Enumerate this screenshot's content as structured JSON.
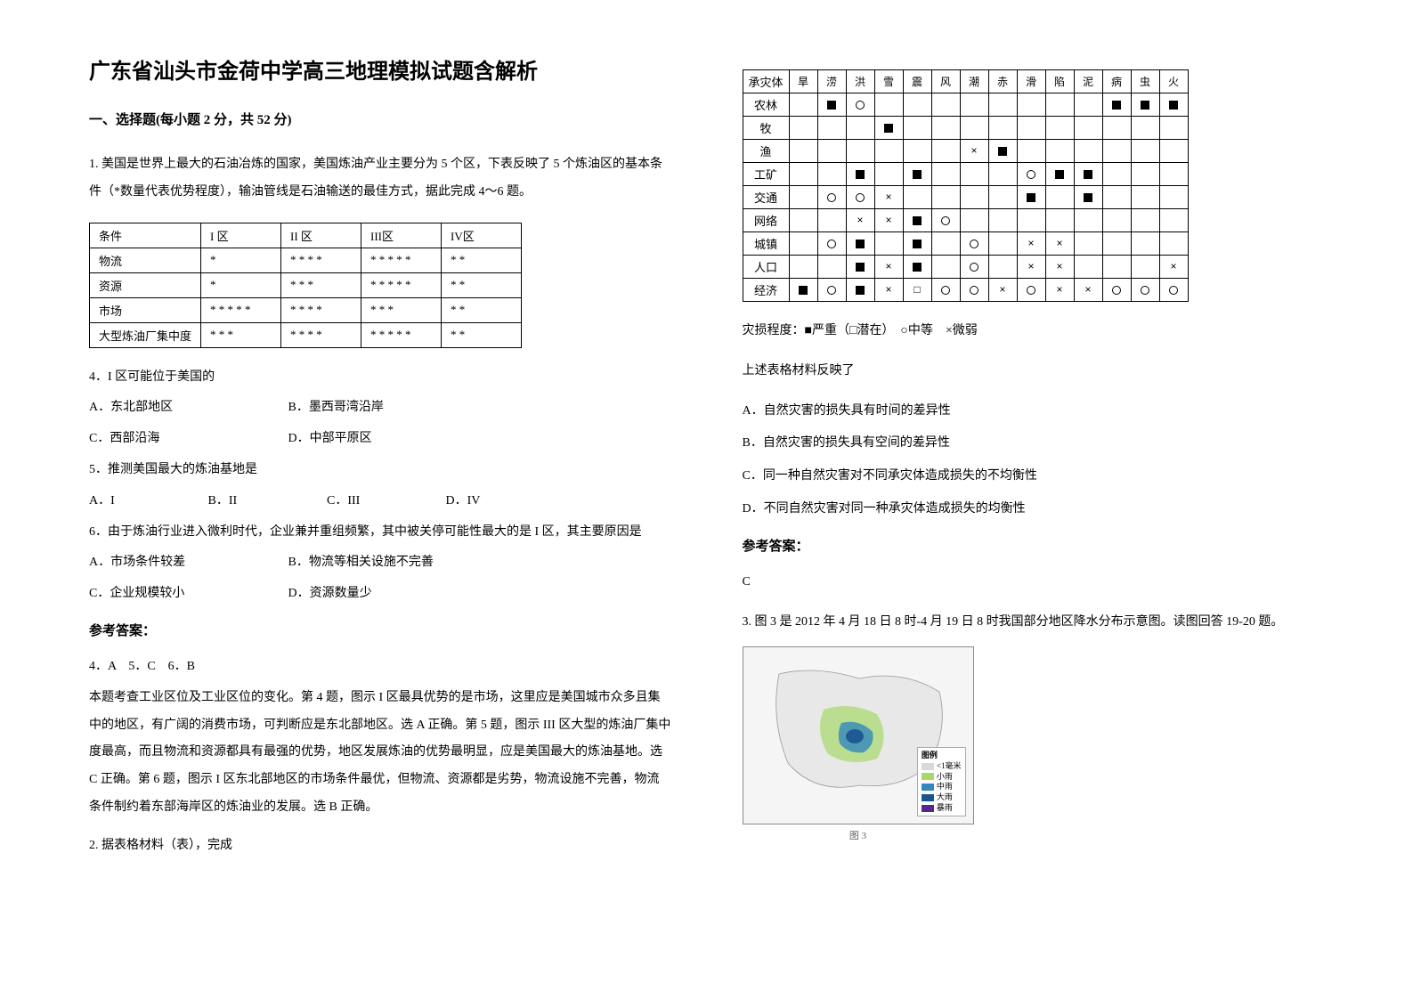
{
  "title": "广东省汕头市金荷中学高三地理模拟试题含解析",
  "section1_title": "一、选择题(每小题 2 分，共 52 分)",
  "q1_intro": "1. 美国是世界上最大的石油冶炼的国家，美国炼油产业主要分为 5 个区，下表反映了 5 个炼油区的基本条件（*数量代表优势程度），输油管线是石油输送的最佳方式，据此完成 4～6 题。",
  "refinery_table": {
    "columns": [
      "条件",
      "I 区",
      "II 区",
      "III区",
      "IV区"
    ],
    "rows": [
      [
        "物流",
        "*",
        "* * * *",
        "* * * * *",
        "* *"
      ],
      [
        "资源",
        "*",
        "* * *",
        "* * * * *",
        "* *"
      ],
      [
        "市场",
        "* * * * *",
        "* * * *",
        "* * *",
        "* *"
      ],
      [
        "大型炼油厂集中度",
        "* * *",
        "* * * *",
        "* * * * *",
        "* *"
      ]
    ]
  },
  "q4": "4．I 区可能位于美国的",
  "q4_a": "A．东北部地区",
  "q4_b": "B．墨西哥湾沿岸",
  "q4_c": "C．西部沿海",
  "q4_d": "D．中部平原区",
  "q5": "5．推测美国最大的炼油基地是",
  "q5_a": "A．I",
  "q5_b": "B．II",
  "q5_c": "C．III",
  "q5_d": "D．IV",
  "q6": "6．由于炼油行业进入微利时代，企业兼并重组频繁，其中被关停可能性最大的是 I 区，其主要原因是",
  "q6_a": "A．市场条件较差",
  "q6_b": "B．物流等相关设施不完善",
  "q6_c": "C．企业规模较小",
  "q6_d": "D．资源数量少",
  "answer_label": "参考答案：",
  "ans_line1": "4．A　5．C　6．B",
  "explain1": "本题考查工业区位及工业区位的变化。第 4 题，图示 I 区最具优势的是市场，这里应是美国城市众多且集中的地区，有广阔的消费市场，可判断应是东北部地区。选 A 正确。第 5 题，图示 III 区大型的炼油厂集中度最高，而且物流和资源都具有最强的优势，地区发展炼油的优势最明显，应是美国最大的炼油基地。选 C 正确。第 6 题，图示 I 区东北部地区的市场条件最优，但物流、资源都是劣势，物流设施不完善，物流条件制约着东部海岸区的炼油业的发展。选 B 正确。",
  "q2_intro": "2. 据表格材料（表），完成",
  "disaster_table": {
    "columns": [
      "承灾体",
      "旱",
      "涝",
      "洪",
      "雪",
      "震",
      "风",
      "潮",
      "赤",
      "滑",
      "陷",
      "泥",
      "病",
      "虫",
      "火"
    ],
    "rows": [
      [
        "农林",
        "",
        "■",
        "○",
        "",
        "",
        "",
        "",
        "",
        "",
        "",
        "",
        "■",
        "■",
        "■"
      ],
      [
        "牧",
        "",
        "",
        "",
        "■",
        "",
        "",
        "",
        "",
        "",
        "",
        "",
        "",
        "",
        ""
      ],
      [
        "渔",
        "",
        "",
        "",
        "",
        "",
        "",
        "×",
        "■",
        "",
        "",
        "",
        "",
        "",
        ""
      ],
      [
        "工矿",
        "",
        "",
        "■",
        "",
        "■",
        "",
        "",
        "",
        "○",
        "■",
        "■",
        "",
        "",
        ""
      ],
      [
        "交通",
        "",
        "○",
        "○",
        "×",
        "",
        "",
        "",
        "",
        "■",
        "",
        "■",
        "",
        "",
        ""
      ],
      [
        "网络",
        "",
        "",
        "×",
        "×",
        "■",
        "○",
        "",
        "",
        "",
        "",
        "",
        "",
        "",
        ""
      ],
      [
        "城镇",
        "",
        "○",
        "■",
        "",
        "■",
        "",
        "○",
        "",
        "×",
        "×",
        "",
        "",
        "",
        ""
      ],
      [
        "人口",
        "",
        "",
        "■",
        "×",
        "■",
        "",
        "○",
        "",
        "×",
        "×",
        "",
        "",
        "",
        "×"
      ],
      [
        "经济",
        "■",
        "○",
        "■",
        "×",
        "□",
        "○",
        "○",
        "×",
        "○",
        "×",
        "×",
        "○",
        "○",
        "○"
      ]
    ]
  },
  "legend_text": "灾损程度：■严重（□潜在）　○中等　×微弱",
  "q2_stem": "上述表格材料反映了",
  "q2_a": "A．自然灾害的损失具有时间的差异性",
  "q2_b": "B．自然灾害的损失具有空间的差异性",
  "q2_c": "C．同一种自然灾害对不同承灾体造成损失的不均衡性",
  "q2_d": "D．不同自然灾害对同一种承灾体造成损失的均衡性",
  "ans2": "C",
  "q3_intro": "3. 图 3 是 2012 年 4 月 18 日 8 时-4 月 19 日 8 时我国部分地区降水分布示意图。读图回答 19-20 题。",
  "fig3_caption": "图 3",
  "fig3_legend_title": "图例",
  "fig3_legend": {
    "items": [
      {
        "color": "#d9d9d9",
        "label": "<1毫米"
      },
      {
        "color": "#a6d96a",
        "label": "小雨"
      },
      {
        "color": "#3288bd",
        "label": "中雨"
      },
      {
        "color": "#1a5490",
        "label": "大雨"
      },
      {
        "color": "#54278f",
        "label": "暴雨"
      }
    ]
  }
}
